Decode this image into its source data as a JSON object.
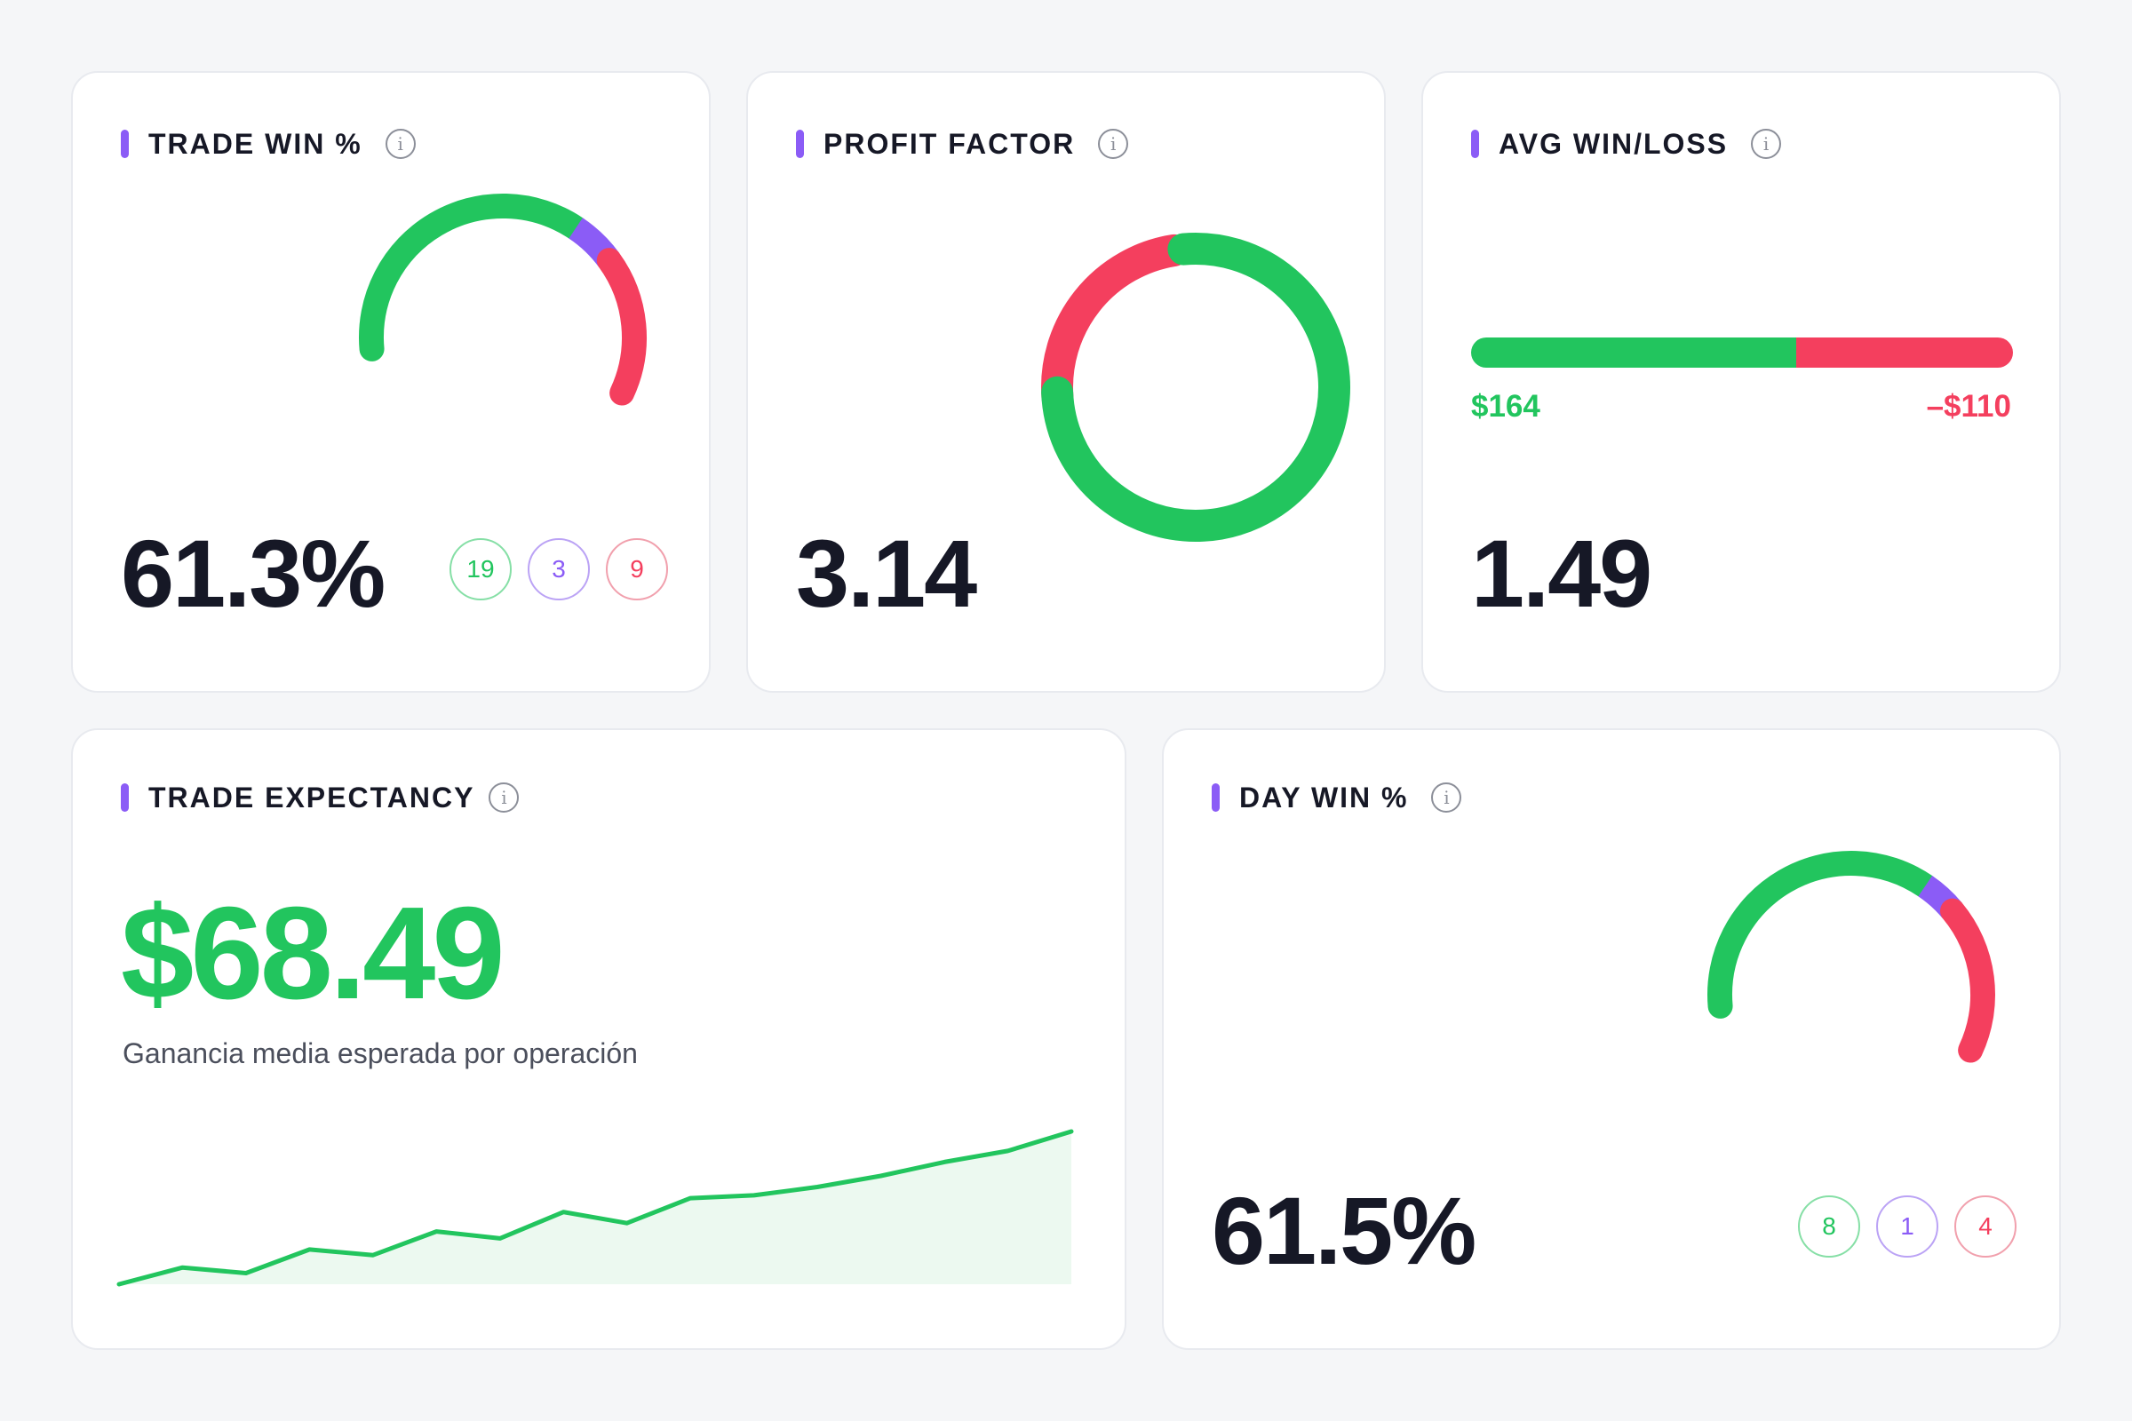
{
  "colors": {
    "win": "#22c55e",
    "breakeven": "#8b5cf6",
    "loss": "#f43f5e",
    "accent": "#8b5cf6"
  },
  "trade_win": {
    "title": "TRADE WIN %",
    "info_icon": "info-icon",
    "value": "61.3%",
    "wins": 19,
    "breakeven": 3,
    "losses": 9,
    "badges": {
      "wins": "19",
      "breakeven": "3",
      "losses": "9"
    }
  },
  "profit_factor": {
    "title": "PROFIT FACTOR",
    "info_icon": "info-icon",
    "value": "3.14",
    "donut": {
      "profit_share": 0.758,
      "loss_share": 0.242
    }
  },
  "avg_win_loss": {
    "title": "AVG WIN/LOSS",
    "info_icon": "info-icon",
    "value": "1.49",
    "avg_win": "$164",
    "avg_loss": "–$110",
    "win_share": 0.6
  },
  "expectancy": {
    "title": "TRADE EXPECTANCY",
    "info_icon": "info-icon",
    "value": "$68.49",
    "subtitle": "Ganancia media esperada por operación",
    "chart_data": {
      "type": "area",
      "values": [
        0,
        12,
        8,
        25,
        21,
        38,
        33,
        52,
        44,
        62,
        64,
        70,
        78,
        88,
        96,
        110
      ]
    }
  },
  "day_win": {
    "title": "DAY WIN %",
    "info_icon": "info-icon",
    "value": "61.5%",
    "wins": 8,
    "breakeven": 1,
    "losses": 4,
    "badges": {
      "wins": "8",
      "breakeven": "1",
      "losses": "4"
    }
  }
}
